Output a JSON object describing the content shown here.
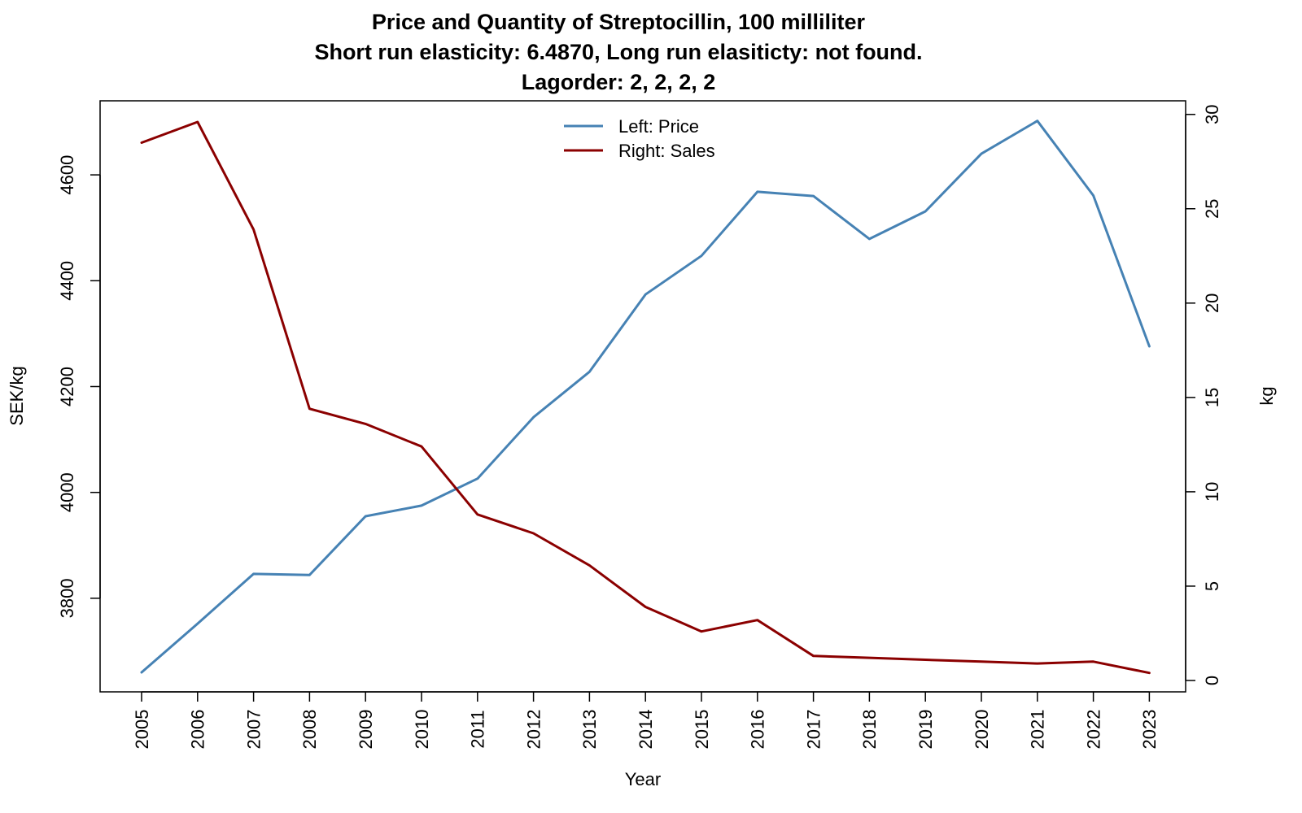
{
  "chart_data": {
    "type": "line",
    "title": "Price and Quantity of Streptocillin, 100 milliliter",
    "subtitle": "Short run elasticity: 6.4870,   Long run elasiticty: not found.",
    "subtitle2": "Lagorder: 2, 2, 2, 2",
    "xlabel": "Year",
    "ylabel_left": "SEK/kg",
    "ylabel_right": "kg",
    "x": [
      "2005",
      "2006",
      "2007",
      "2008",
      "2009",
      "2010",
      "2011",
      "2012",
      "2013",
      "2014",
      "2015",
      "2016",
      "2017",
      "2018",
      "2019",
      "2020",
      "2021",
      "2022",
      "2023"
    ],
    "left_axis": {
      "range": [
        3660,
        4700
      ],
      "ticks": [
        3800,
        4000,
        4200,
        4400,
        4600
      ]
    },
    "right_axis": {
      "range": [
        0,
        29.6
      ],
      "ticks": [
        0,
        5,
        10,
        15,
        20,
        25,
        30
      ]
    },
    "series": [
      {
        "name": "Left: Price",
        "axis": "left",
        "color": "#4682B4",
        "values": [
          3660,
          3752,
          3846,
          3844,
          3955,
          3975,
          4026,
          4142,
          4228,
          4374,
          4447,
          4568,
          4560,
          4479,
          4531,
          4640,
          4702,
          4561,
          4276
        ]
      },
      {
        "name": "Right: Sales",
        "axis": "right",
        "color": "#8B0000",
        "values": [
          28.5,
          29.6,
          23.9,
          14.4,
          13.6,
          12.4,
          8.8,
          7.8,
          6.1,
          3.9,
          2.6,
          3.2,
          1.3,
          1.2,
          1.1,
          1.0,
          0.9,
          1.0,
          0.4
        ]
      }
    ],
    "legend_position": "top-center",
    "grid": false
  }
}
